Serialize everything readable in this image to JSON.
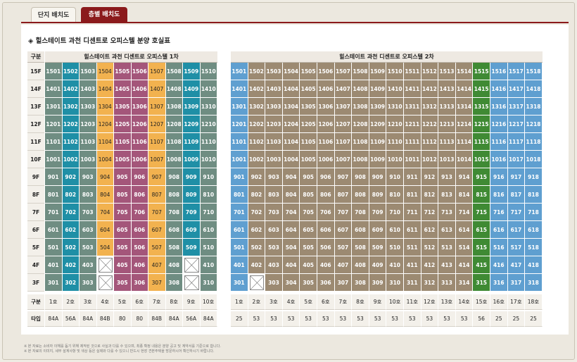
{
  "tabs": [
    {
      "label": "단지 배치도",
      "active": false
    },
    {
      "label": "층별 배치도",
      "active": true
    }
  ],
  "panel_title": "◈ 힐스테이트 과천 디센트로 오피스텔 분양 호실표",
  "header": {
    "floor_label": "구분",
    "building1": "힐스테이트 과천 디센트로 오피스텔 1차",
    "building2": "힐스테이트 과천 디센트로 오피스텔 2차"
  },
  "floors": [
    "15F",
    "14F",
    "13F",
    "12F",
    "11F",
    "10F",
    "9F",
    "8F",
    "7F",
    "6F",
    "5F",
    "4F",
    "3F"
  ],
  "floor_numbers": [
    15,
    14,
    13,
    12,
    11,
    10,
    9,
    8,
    7,
    6,
    5,
    4,
    3
  ],
  "building1": {
    "unit_label": "구분",
    "type_label": "타입",
    "units": [
      "1호",
      "2호",
      "3호",
      "4호",
      "5호",
      "6호",
      "7호",
      "8호",
      "9호",
      "10호"
    ],
    "types": [
      "84A",
      "56A",
      "84A",
      "84B",
      "80",
      "80",
      "84B",
      "84A",
      "56A",
      "84A"
    ],
    "colors": [
      "#6f8d82",
      "#1f8fa6",
      "#6f8d82",
      "#f2b24f",
      "#a4567a",
      "#a4567a",
      "#f2b24f",
      "#6f8d82",
      "#1f8fa6",
      "#6f8d82"
    ],
    "light_cols": [
      3,
      6
    ],
    "missing": {
      "4": [
        3,
        8
      ],
      "3": [
        3,
        8
      ]
    }
  },
  "building2": {
    "units": [
      "1호",
      "2호",
      "3호",
      "4호",
      "5호",
      "6호",
      "7호",
      "8호",
      "9호",
      "10호",
      "11호",
      "12호",
      "13호",
      "14호",
      "15호",
      "16호",
      "17호",
      "18호"
    ],
    "types": [
      "25",
      "53",
      "53",
      "53",
      "53",
      "53",
      "53",
      "53",
      "53",
      "53",
      "53",
      "53",
      "53",
      "53",
      "56",
      "25",
      "25",
      "25"
    ],
    "colors": [
      "#5f9fd0",
      "#9c8a72",
      "#9c8a72",
      "#9c8a72",
      "#9c8a72",
      "#9c8a72",
      "#9c8a72",
      "#9c8a72",
      "#9c8a72",
      "#9c8a72",
      "#9c8a72",
      "#9c8a72",
      "#9c8a72",
      "#9c8a72",
      "#3f8a34",
      "#5f9fd0",
      "#5f9fd0",
      "#5f9fd0"
    ],
    "missing": {
      "3": [
        1
      ]
    }
  },
  "notes": [
    "※ 본 자료는 소비자 이해를 돕기 위해 제작된 것으로 사실과 다를 수 있으며, 최종 확정 내용은 분양 공고 및 계약서를 기준으로 합니다.",
    "※ 본 자료의 이미지, 세부 설계사항 및 색상 등은 실제와 다를 수 있으니 반드시 현장 견본주택을 방문하시어 확인하시기 바랍니다."
  ]
}
